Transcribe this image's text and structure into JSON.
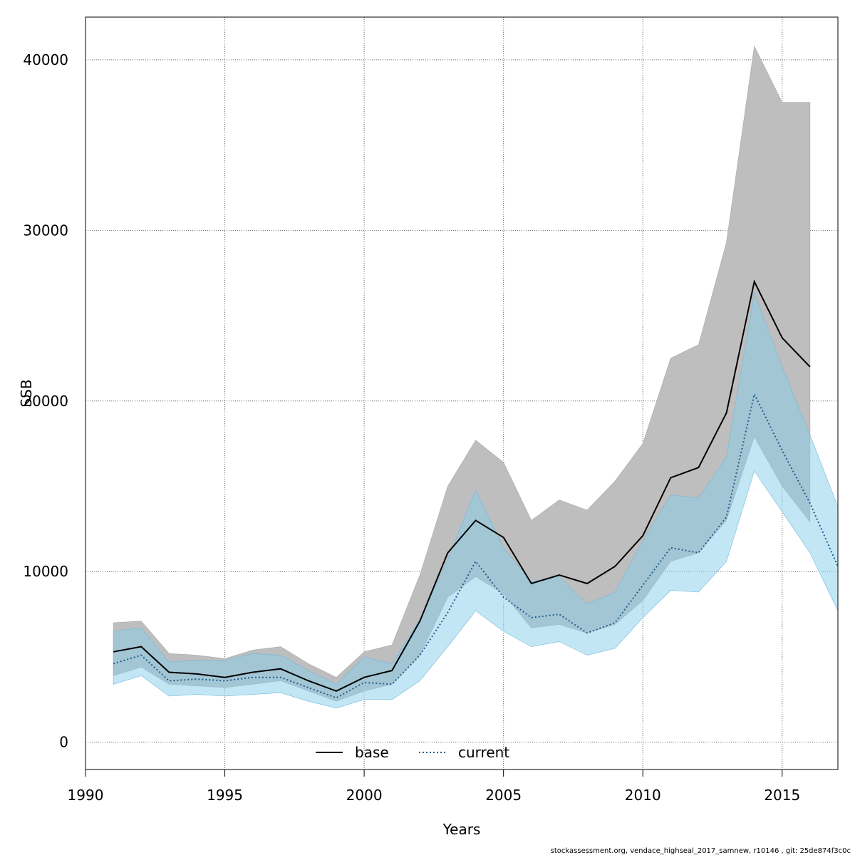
{
  "chart_data": {
    "type": "area",
    "xlabel": "Years",
    "ylabel": "SSB",
    "xlim": [
      1990,
      2017
    ],
    "ylim": [
      -1600,
      42500
    ],
    "x_ticks": [
      "1990",
      "1995",
      "2000",
      "2005",
      "2010",
      "2015"
    ],
    "y_ticks": [
      "0",
      "10000",
      "20000",
      "30000",
      "40000"
    ],
    "grid": true,
    "legend_position": "bottom-center",
    "series": [
      {
        "name": "base",
        "line_style": "solid",
        "line_color": "#000000",
        "band_color": "#bebebe",
        "x": [
          1991,
          1992,
          1993,
          1994,
          1995,
          1996,
          1997,
          1998,
          1999,
          2000,
          2001,
          2002,
          2003,
          2004,
          2005,
          2006,
          2007,
          2008,
          2009,
          2010,
          2011,
          2012,
          2013,
          2014,
          2015,
          2016
        ],
        "values": [
          5300,
          5600,
          4100,
          4000,
          3800,
          4100,
          4300,
          3600,
          3000,
          3800,
          4200,
          7100,
          11100,
          13000,
          12000,
          9300,
          9800,
          9300,
          10300,
          12100,
          15500,
          16100,
          19300,
          27000,
          23700,
          22000
        ],
        "lower": [
          3900,
          4400,
          3400,
          3300,
          3200,
          3400,
          3600,
          3000,
          2400,
          3000,
          3400,
          5100,
          8500,
          9700,
          8700,
          6700,
          6900,
          6400,
          6900,
          8300,
          10600,
          11100,
          13000,
          17900,
          15000,
          12900
        ],
        "upper": [
          7000,
          7100,
          5200,
          5100,
          4900,
          5400,
          5600,
          4600,
          3800,
          5300,
          5700,
          9800,
          15000,
          17700,
          16400,
          13000,
          14200,
          13600,
          15300,
          17500,
          22500,
          23300,
          29300,
          40800,
          37500,
          37500
        ]
      },
      {
        "name": "current",
        "line_style": "dotted",
        "line_color": "#1f5f8b",
        "band_color": "#87ceeb",
        "x": [
          1991,
          1992,
          1993,
          1994,
          1995,
          1996,
          1997,
          1998,
          1999,
          2000,
          2001,
          2002,
          2003,
          2004,
          2005,
          2006,
          2007,
          2008,
          2009,
          2010,
          2011,
          2012,
          2013,
          2014,
          2015,
          2016,
          2017
        ],
        "values": [
          4600,
          5100,
          3600,
          3700,
          3600,
          3800,
          3800,
          3200,
          2600,
          3500,
          3400,
          5100,
          7600,
          10600,
          8500,
          7300,
          7500,
          6400,
          7000,
          9200,
          11400,
          11100,
          13200,
          20400,
          17100,
          14000,
          10300
        ],
        "lower": [
          3400,
          3900,
          2700,
          2800,
          2700,
          2800,
          2900,
          2400,
          2000,
          2500,
          2500,
          3600,
          5600,
          7700,
          6500,
          5600,
          5900,
          5100,
          5500,
          7300,
          8900,
          8800,
          10600,
          15900,
          13500,
          11100,
          7700
        ],
        "upper": [
          6500,
          6700,
          4700,
          4800,
          4800,
          5200,
          5100,
          4200,
          3400,
          5000,
          4600,
          7200,
          10700,
          14800,
          11400,
          9400,
          9700,
          8100,
          8800,
          11800,
          14500,
          14300,
          16700,
          26300,
          22000,
          18000,
          13800
        ]
      }
    ]
  },
  "footer": "stockassessment.org, vendace_highseal_2017_samnew, r10146 , git: 25de874f3c0c"
}
